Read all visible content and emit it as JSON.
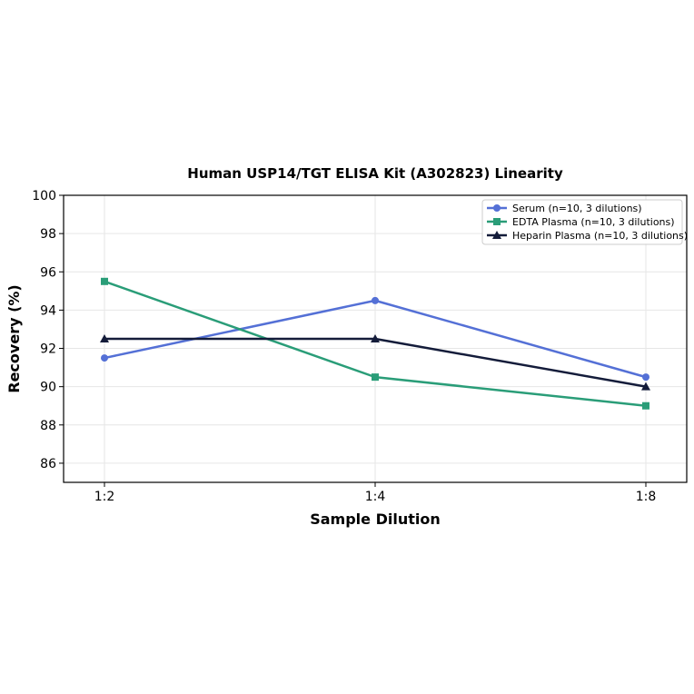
{
  "chart_data": {
    "type": "line",
    "title": "Human USP14/TGT ELISA Kit (A302823) Linearity",
    "xlabel": "Sample Dilution",
    "ylabel": "Recovery (%)",
    "categories": [
      "1:2",
      "1:4",
      "1:8"
    ],
    "ylim": [
      85,
      100
    ],
    "yticks": [
      86,
      88,
      90,
      92,
      94,
      96,
      98,
      100
    ],
    "grid": true,
    "legend_position": "top-right",
    "series": [
      {
        "name": "Serum (n=10, 3 dilutions)",
        "values": [
          91.5,
          94.5,
          90.5
        ],
        "color": "#5470d6",
        "marker": "circle"
      },
      {
        "name": "EDTA Plasma (n=10, 3 dilutions)",
        "values": [
          95.5,
          90.5,
          89.0
        ],
        "color": "#2a9d78",
        "marker": "square"
      },
      {
        "name": "Heparin Plasma (n=10, 3 dilutions)",
        "values": [
          92.5,
          92.5,
          90.0
        ],
        "color": "#141c3a",
        "marker": "triangle"
      }
    ]
  }
}
